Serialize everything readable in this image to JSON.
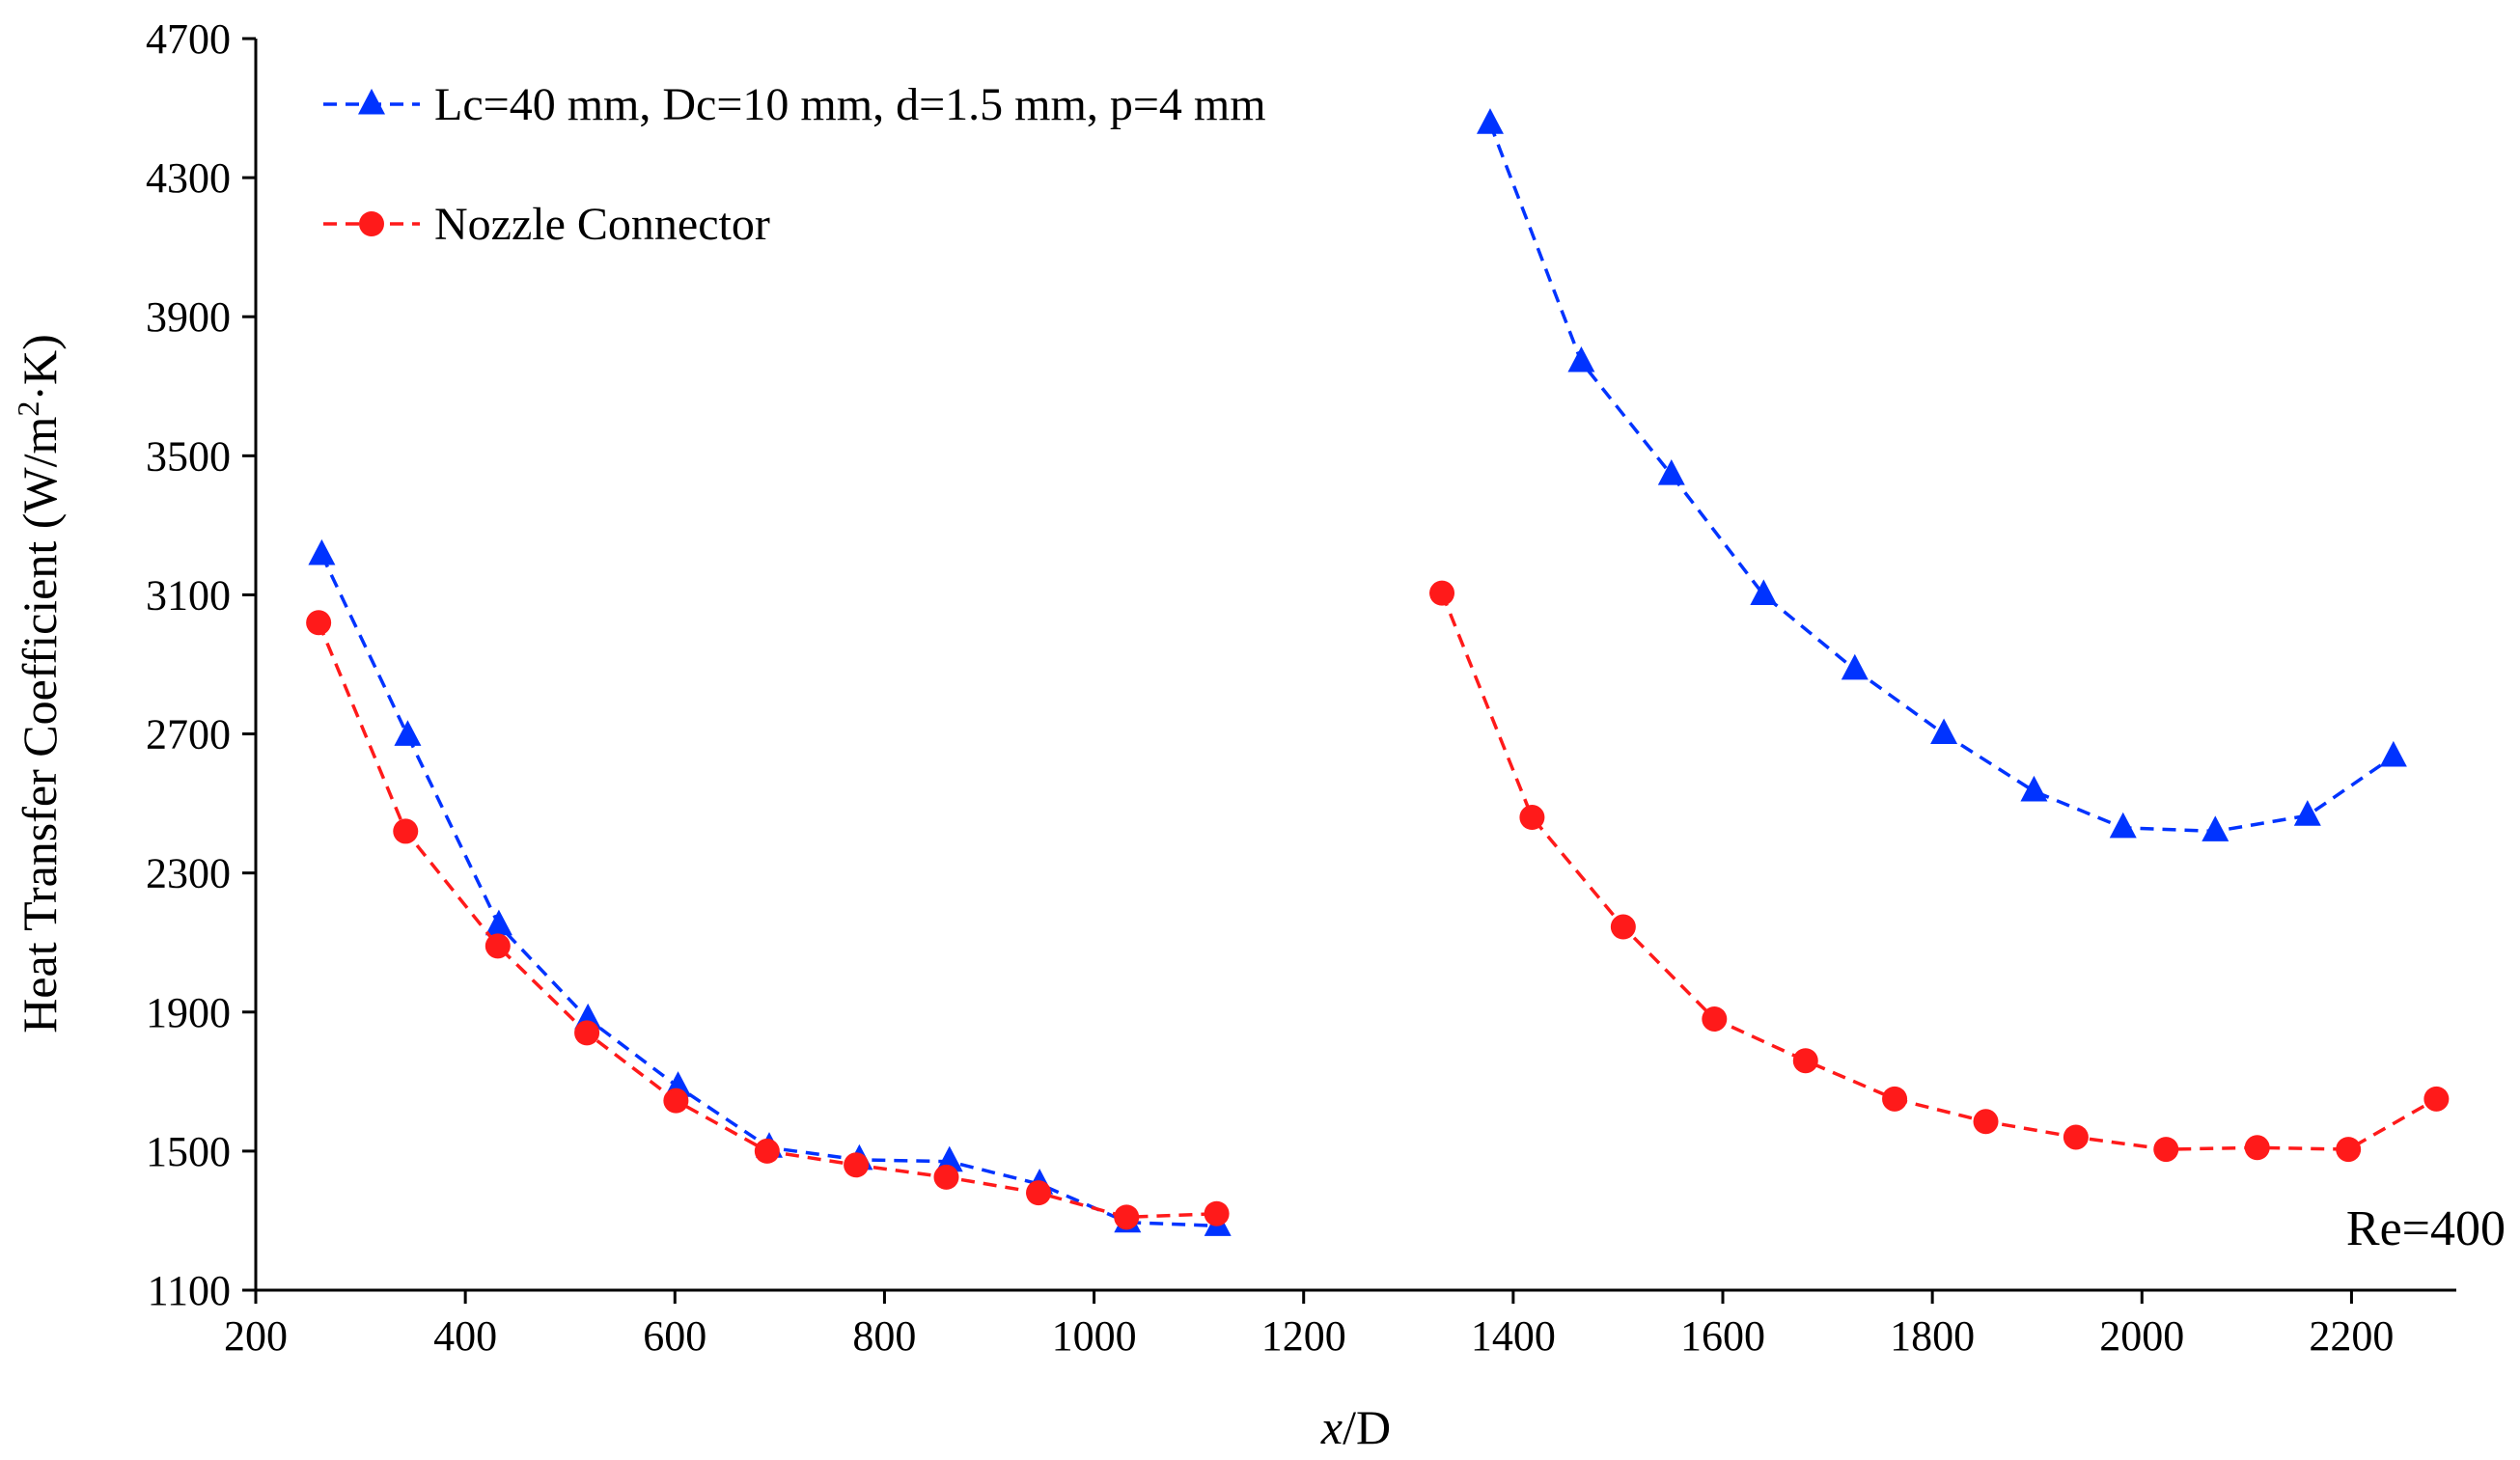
{
  "chart_data": {
    "type": "line",
    "title": "",
    "xlabel_italic": "x",
    "xlabel_rest": "/D",
    "ylabel_main": "Heat Transfer Coefficient (W/m",
    "ylabel_sup": "2",
    "ylabel_end": "·K)",
    "xlim": [
      200,
      2300
    ],
    "ylim": [
      1100,
      4700
    ],
    "x_ticks": [
      200,
      400,
      600,
      800,
      1000,
      1200,
      1400,
      1600,
      1800,
      2000,
      2200
    ],
    "y_ticks": [
      1100,
      1500,
      1900,
      2300,
      2700,
      3100,
      3500,
      3900,
      4300,
      4700
    ],
    "annotation": "Re=400",
    "legend_position": "top-left",
    "series": [
      {
        "name": "Lc=40 mm, Dc=10 mm, d=1.5 mm, p=4 mm",
        "color": "#0033ff",
        "marker": "triangle",
        "segments": [
          {
            "x": [
              263,
              345,
              432,
              517,
              603,
              690,
              776,
              862,
              948,
              1032,
              1118
            ],
            "y": [
              3215,
              2695,
              2150,
              1880,
              1685,
              1510,
              1475,
              1470,
              1405,
              1295,
              1285
            ]
          },
          {
            "x": [
              1378,
              1465,
              1551,
              1639,
              1726,
              1811,
              1897,
              1982,
              2070,
              2158,
              2240
            ],
            "y": [
              4455,
              3770,
              3445,
              3100,
              2885,
              2700,
              2535,
              2430,
              2420,
              2465,
              2635
            ]
          }
        ]
      },
      {
        "name": "Nozzle Connector",
        "color": "#ff1a1a",
        "marker": "circle",
        "segments": [
          {
            "x": [
              260,
              343,
              431,
              516,
              601,
              688,
              773,
              859,
              947,
              1031,
              1117
            ],
            "y": [
              3020,
              2420,
              2090,
              1840,
              1645,
              1500,
              1460,
              1425,
              1380,
              1310,
              1320
            ]
          },
          {
            "x": [
              1332,
              1418,
              1505,
              1592,
              1679,
              1764,
              1851,
              1937,
              2023,
              2110,
              2197,
              2281
            ],
            "y": [
              3105,
              2460,
              2145,
              1880,
              1760,
              1650,
              1585,
              1540,
              1505,
              1510,
              1505,
              1650
            ]
          }
        ]
      }
    ]
  }
}
